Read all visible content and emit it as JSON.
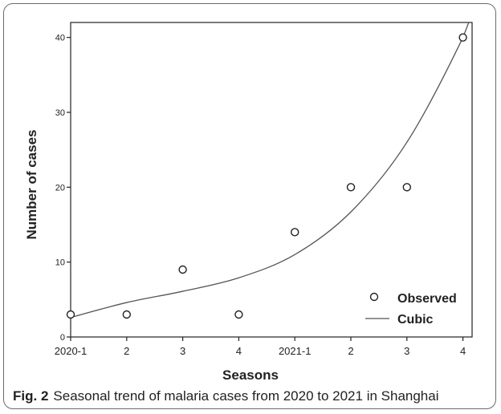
{
  "caption": {
    "label": "Fig. 2",
    "text": "Seasonal trend of malaria cases from 2020 to 2021 in Shanghai"
  },
  "chart_data": {
    "type": "scatter",
    "title": "",
    "xlabel": "Seasons",
    "ylabel": "Number of cases",
    "categories": [
      "2020-1",
      "2",
      "3",
      "4",
      "2021-1",
      "2",
      "3",
      "4"
    ],
    "ylim": [
      0,
      42
    ],
    "yticks": [
      0,
      10,
      20,
      30,
      40
    ],
    "grid": false,
    "legend_position": "bottom-right",
    "series": [
      {
        "name": "Observed",
        "kind": "points",
        "values": [
          3,
          3,
          9,
          3,
          14,
          20,
          20,
          40
        ]
      },
      {
        "name": "Cubic",
        "kind": "line",
        "values": [
          2.6,
          4.6,
          6.1,
          7.9,
          11.0,
          16.7,
          26.0,
          40.0
        ]
      }
    ]
  }
}
